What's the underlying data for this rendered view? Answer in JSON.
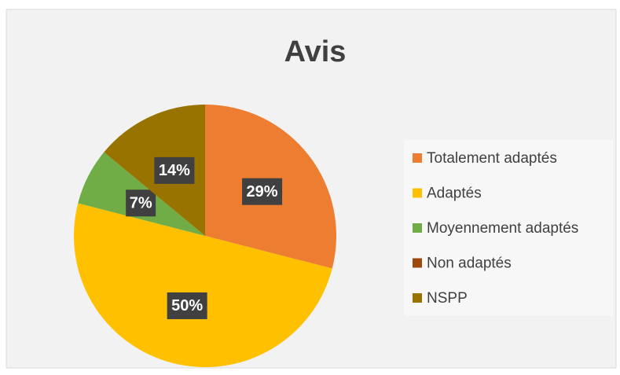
{
  "chart_data": {
    "type": "pie",
    "title": "Avis",
    "categories": [
      "Totalement adaptés",
      "Adaptés",
      "Moyennement adaptés",
      "Non adaptés",
      "NSPP"
    ],
    "values": [
      29,
      50,
      7,
      0,
      14
    ],
    "value_labels": [
      "29%",
      "50%",
      "7%",
      null,
      "14%"
    ],
    "colors": [
      "#ed7d31",
      "#ffc000",
      "#70ad47",
      "#9e480e",
      "#997300"
    ],
    "legend": "right"
  }
}
